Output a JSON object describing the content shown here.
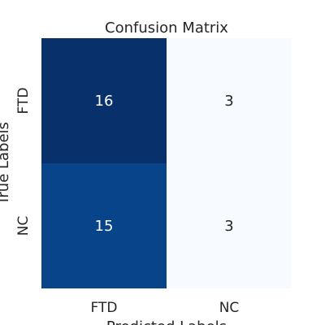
{
  "chart_data": {
    "type": "heatmap",
    "title": "Confusion Matrix",
    "xlabel": "Predicted Labels",
    "ylabel": "True Labels",
    "x_categories": [
      "FTD",
      "NC"
    ],
    "y_categories": [
      "FTD",
      "NC"
    ],
    "values": [
      [
        16,
        3
      ],
      [
        15,
        3
      ]
    ],
    "colormap": "Blues",
    "color_range": [
      3,
      16
    ],
    "colors": {
      "low": "#f7fbff",
      "high": "#08306b",
      "annotation_dark_bg": "#ffffff",
      "annotation_light_bg": "#262626"
    },
    "colorbar": false,
    "grid": false
  }
}
